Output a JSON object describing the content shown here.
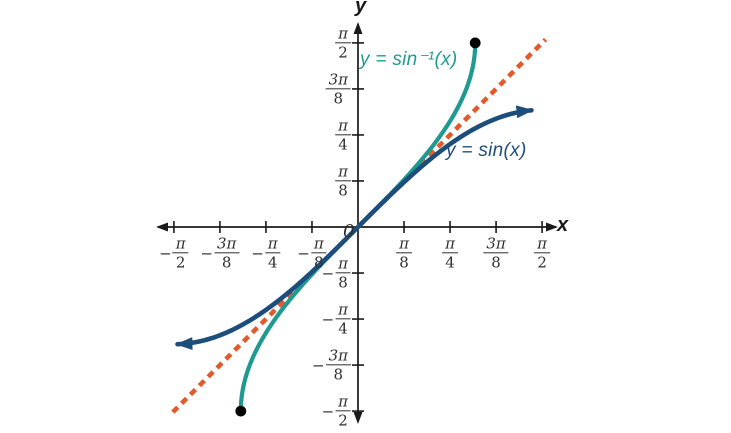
{
  "figure": {
    "origin_label": "0",
    "x_axis_label": "x",
    "y_axis_label": "y",
    "background": "#ffffff"
  },
  "labels": {
    "arcsin": "y = sin⁻¹(x)",
    "sin": "y = sin(x)"
  },
  "colors": {
    "arcsin": "#1e9a91",
    "sin": "#1d4e7b",
    "identity": "#e05a2b",
    "axis": "#1a1a1a",
    "tick_text": "#2e2e2e",
    "endpoint": "#000000"
  },
  "chart_data": {
    "type": "line",
    "title": "",
    "xlabel": "x",
    "ylabel": "y",
    "xlim": [
      -1.72,
      1.72
    ],
    "ylim": [
      -1.78,
      1.78
    ],
    "grid": false,
    "x_ticks": [
      {
        "value": -1.5708,
        "label": "-π/2",
        "neg": true,
        "num": "π",
        "den": "2"
      },
      {
        "value": -1.1781,
        "label": "-3π/8",
        "neg": true,
        "num": "3π",
        "den": "8"
      },
      {
        "value": -0.7854,
        "label": "-π/4",
        "neg": true,
        "num": "π",
        "den": "4"
      },
      {
        "value": -0.3927,
        "label": "-π/8",
        "neg": true,
        "num": "π",
        "den": "8"
      },
      {
        "value": 0.3927,
        "label": "π/8",
        "neg": false,
        "num": "π",
        "den": "8"
      },
      {
        "value": 0.7854,
        "label": "π/4",
        "neg": false,
        "num": "π",
        "den": "4"
      },
      {
        "value": 1.1781,
        "label": "3π/8",
        "neg": false,
        "num": "3π",
        "den": "8"
      },
      {
        "value": 1.5708,
        "label": "π/2",
        "neg": false,
        "num": "π",
        "den": "2"
      }
    ],
    "y_ticks": [
      {
        "value": 1.5708,
        "label": "π/2",
        "neg": false,
        "num": "π",
        "den": "2"
      },
      {
        "value": 1.1781,
        "label": "3π/8",
        "neg": false,
        "num": "3π",
        "den": "8"
      },
      {
        "value": 0.7854,
        "label": "π/4",
        "neg": false,
        "num": "π",
        "den": "4"
      },
      {
        "value": 0.3927,
        "label": "π/8",
        "neg": false,
        "num": "π",
        "den": "8"
      },
      {
        "value": -0.3927,
        "label": "-π/8",
        "neg": true,
        "num": "π",
        "den": "8"
      },
      {
        "value": -0.7854,
        "label": "-π/4",
        "neg": true,
        "num": "π",
        "den": "4"
      },
      {
        "value": -1.1781,
        "label": "-3π/8",
        "neg": true,
        "num": "3π",
        "den": "8"
      },
      {
        "value": -1.5708,
        "label": "-π/2",
        "neg": true,
        "num": "π",
        "den": "2"
      }
    ],
    "series": [
      {
        "name": "y = x",
        "function": "identity",
        "color_key": "identity",
        "style": "dashed",
        "domain": [
          -1.58,
          1.6
        ],
        "end_marker": "none",
        "key_points": [
          {
            "x": -1.58,
            "y": -1.58
          },
          {
            "x": 0,
            "y": 0
          },
          {
            "x": 1.6,
            "y": 1.6
          }
        ]
      },
      {
        "name": "y = sin⁻¹(x)",
        "function": "arcsin",
        "color_key": "arcsin",
        "style": "solid",
        "domain": [
          -1,
          1
        ],
        "end_marker": "dot",
        "endpoints": [
          {
            "x": -1,
            "y": -1.5708
          },
          {
            "x": 1,
            "y": 1.5708
          }
        ],
        "key_points": [
          {
            "x": -1,
            "y": -1.5708
          },
          {
            "x": -0.924,
            "y": -1.1781
          },
          {
            "x": -0.707,
            "y": -0.7854
          },
          {
            "x": -0.383,
            "y": -0.3927
          },
          {
            "x": 0,
            "y": 0
          },
          {
            "x": 0.383,
            "y": 0.3927
          },
          {
            "x": 0.707,
            "y": 0.7854
          },
          {
            "x": 0.924,
            "y": 1.1781
          },
          {
            "x": 1,
            "y": 1.5708
          }
        ]
      },
      {
        "name": "y = sin(x)",
        "function": "sin",
        "color_key": "sin",
        "style": "solid",
        "domain": [
          -1.54,
          1.48
        ],
        "end_marker": "arrow",
        "key_points": [
          {
            "x": -1.5708,
            "y": -1
          },
          {
            "x": -1.1781,
            "y": -0.924
          },
          {
            "x": -0.7854,
            "y": -0.707
          },
          {
            "x": -0.3927,
            "y": -0.383
          },
          {
            "x": 0,
            "y": 0
          },
          {
            "x": 0.3927,
            "y": 0.383
          },
          {
            "x": 0.7854,
            "y": 0.707
          },
          {
            "x": 1.1781,
            "y": 0.924
          },
          {
            "x": 1.5708,
            "y": 1
          }
        ]
      }
    ],
    "legend_position": "annotations-on-curves"
  }
}
